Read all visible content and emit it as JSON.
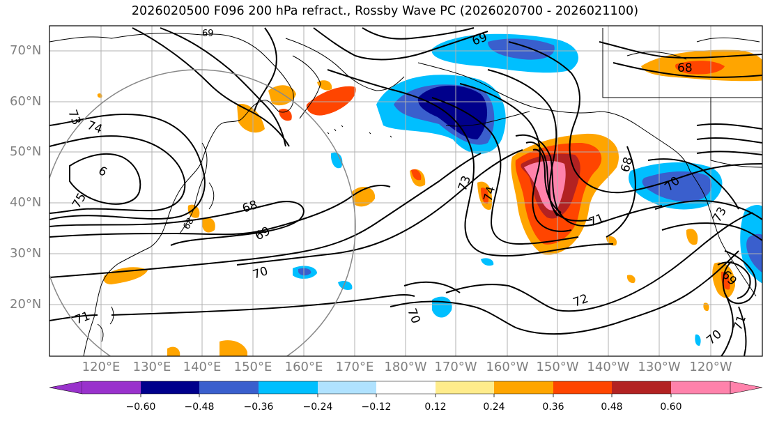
{
  "title": "2026020500 F096 200 hPa refract., Rossby Wave PC (2026020700 - 2026021100)",
  "lat_labels": [
    "70°N",
    "60°N",
    "50°N",
    "40°N",
    "30°N",
    "20°N"
  ],
  "lon_labels": [
    "120°E",
    "130°E",
    "140°E",
    "150°E",
    "160°E",
    "170°E",
    "180°W",
    "170°W",
    "160°W",
    "150°W",
    "140°W",
    "130°W",
    "120°W"
  ],
  "contour_labels": [
    "73",
    "74",
    "6",
    "75",
    "68",
    "69",
    "70",
    "71",
    "69",
    "73",
    "74",
    "71",
    "72",
    "70",
    "68",
    "70",
    "73",
    "69",
    "71",
    "70",
    "68",
    "68",
    "69"
  ],
  "colorbar": {
    "ticks": [
      "−0.60",
      "−0.48",
      "−0.36",
      "−0.24",
      "−0.12",
      "0.12",
      "0.24",
      "0.36",
      "0.48",
      "0.60"
    ],
    "colors": [
      "#9932CC",
      "#00008B",
      "#3A5FCD",
      "#00BFFF",
      "#B0E2FF",
      "#FFFFFF",
      "#FFEC8B",
      "#FFA500",
      "#FF4500",
      "#B22222",
      "#FF82AB"
    ]
  }
}
